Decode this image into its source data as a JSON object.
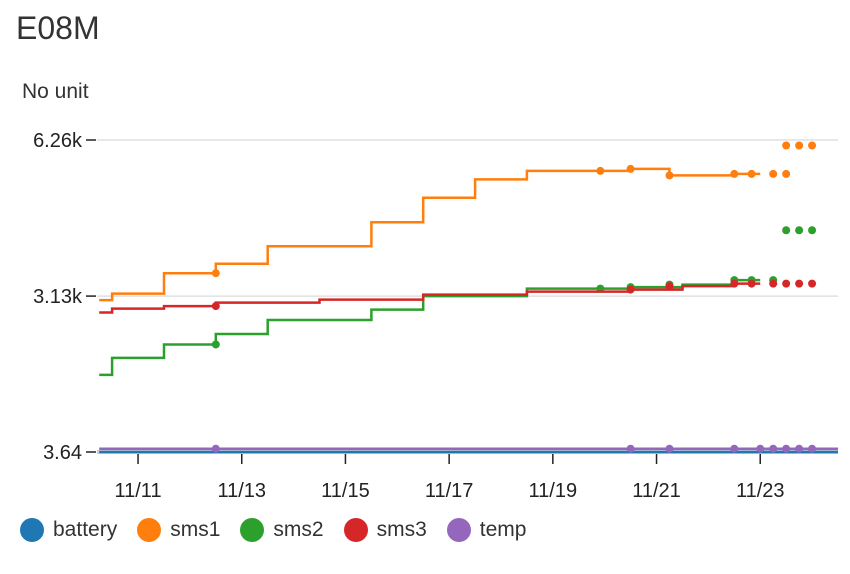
{
  "title": "E08M",
  "unit_label": "No unit",
  "chart_data": {
    "type": "line",
    "x_ticks": [
      "11/11",
      "11/13",
      "11/15",
      "11/17",
      "11/19",
      "11/21",
      "11/23"
    ],
    "y_ticks": [
      {
        "label": "6.26k",
        "value": 6260
      },
      {
        "label": "3.13k",
        "value": 3130
      },
      {
        "label": "3.64",
        "value": 3.64
      }
    ],
    "ylim": [
      3.64,
      6260
    ],
    "xlim": [
      "11/10 05:00",
      "11/24 12:00"
    ],
    "grid": true,
    "legend": "bottom",
    "series": [
      {
        "name": "battery",
        "color": "#1f77b4",
        "points": [
          [
            "11/10 06:00",
            3.64
          ],
          [
            "11/24 12:00",
            3.64
          ]
        ],
        "dots": []
      },
      {
        "name": "sms1",
        "color": "#ff7f0e",
        "points": [
          [
            "11/10 06:00",
            3050
          ],
          [
            "11/10 12:00",
            3050
          ],
          [
            "11/10 12:00",
            3180
          ],
          [
            "11/11 12:00",
            3180
          ],
          [
            "11/11 12:00",
            3590
          ],
          [
            "11/12 12:00",
            3590
          ],
          [
            "11/12 12:00",
            3780
          ],
          [
            "11/13 12:00",
            3780
          ],
          [
            "11/13 12:00",
            4130
          ],
          [
            "11/15 12:00",
            4130
          ],
          [
            "11/15 12:00",
            4610
          ],
          [
            "11/16 12:00",
            4610
          ],
          [
            "11/16 12:00",
            5100
          ],
          [
            "11/17 12:00",
            5100
          ],
          [
            "11/17 12:00",
            5470
          ],
          [
            "11/18 12:00",
            5470
          ],
          [
            "11/18 12:00",
            5640
          ],
          [
            "11/20 12:00",
            5640
          ],
          [
            "11/20 12:00",
            5680
          ],
          [
            "11/21 06:00",
            5680
          ],
          [
            "11/21 06:00",
            5550
          ],
          [
            "11/22 12:00",
            5550
          ],
          [
            "11/22 12:00",
            5580
          ],
          [
            "11/23 00:00",
            5580
          ]
        ],
        "dots": [
          [
            "11/12 12:00",
            3590
          ],
          [
            "11/19 22:00",
            5640
          ],
          [
            "11/20 12:00",
            5680
          ],
          [
            "11/21 06:00",
            5550
          ],
          [
            "11/22 12:00",
            5580
          ],
          [
            "11/22 20:00",
            5580
          ],
          [
            "11/23 06:00",
            5580
          ],
          [
            "11/23 12:00",
            5580
          ],
          [
            "11/23 12:00",
            6150
          ],
          [
            "11/23 18:00",
            6150
          ],
          [
            "11/24 00:00",
            6150
          ]
        ]
      },
      {
        "name": "sms2",
        "color": "#2ca02c",
        "points": [
          [
            "11/10 06:00",
            1550
          ],
          [
            "11/10 12:00",
            1550
          ],
          [
            "11/10 12:00",
            1890
          ],
          [
            "11/11 12:00",
            1890
          ],
          [
            "11/11 12:00",
            2160
          ],
          [
            "11/12 12:00",
            2160
          ],
          [
            "11/12 12:00",
            2370
          ],
          [
            "11/13 12:00",
            2370
          ],
          [
            "11/13 12:00",
            2650
          ],
          [
            "11/15 12:00",
            2650
          ],
          [
            "11/15 12:00",
            2860
          ],
          [
            "11/16 12:00",
            2860
          ],
          [
            "11/16 12:00",
            3130
          ],
          [
            "11/18 12:00",
            3130
          ],
          [
            "11/18 12:00",
            3280
          ],
          [
            "11/20 12:00",
            3280
          ],
          [
            "11/20 12:00",
            3310
          ],
          [
            "11/21 12:00",
            3310
          ],
          [
            "11/21 12:00",
            3360
          ],
          [
            "11/22 12:00",
            3360
          ],
          [
            "11/22 12:00",
            3450
          ],
          [
            "11/23 00:00",
            3450
          ]
        ],
        "dots": [
          [
            "11/12 12:00",
            2160
          ],
          [
            "11/19 22:00",
            3280
          ],
          [
            "11/20 12:00",
            3310
          ],
          [
            "11/21 06:00",
            3360
          ],
          [
            "11/22 12:00",
            3450
          ],
          [
            "11/22 20:00",
            3450
          ],
          [
            "11/23 06:00",
            3450
          ],
          [
            "11/23 12:00",
            4450
          ],
          [
            "11/23 18:00",
            4450
          ],
          [
            "11/24 00:00",
            4450
          ]
        ]
      },
      {
        "name": "sms3",
        "color": "#d62728",
        "points": [
          [
            "11/10 06:00",
            2800
          ],
          [
            "11/10 12:00",
            2800
          ],
          [
            "11/10 12:00",
            2880
          ],
          [
            "11/11 12:00",
            2880
          ],
          [
            "11/11 12:00",
            2930
          ],
          [
            "11/12 12:00",
            2930
          ],
          [
            "11/12 12:00",
            3000
          ],
          [
            "11/14 12:00",
            3000
          ],
          [
            "11/14 12:00",
            3060
          ],
          [
            "11/16 12:00",
            3060
          ],
          [
            "11/16 12:00",
            3160
          ],
          [
            "11/18 12:00",
            3160
          ],
          [
            "11/18 12:00",
            3220
          ],
          [
            "11/20 12:00",
            3220
          ],
          [
            "11/20 12:00",
            3260
          ],
          [
            "11/21 12:00",
            3260
          ],
          [
            "11/21 12:00",
            3330
          ],
          [
            "11/22 12:00",
            3330
          ],
          [
            "11/22 12:00",
            3380
          ],
          [
            "11/23 00:00",
            3380
          ]
        ],
        "dots": [
          [
            "11/12 12:00",
            2930
          ],
          [
            "11/20 12:00",
            3260
          ],
          [
            "11/21 06:00",
            3330
          ],
          [
            "11/22 12:00",
            3380
          ],
          [
            "11/22 20:00",
            3380
          ],
          [
            "11/23 06:00",
            3380
          ],
          [
            "11/23 12:00",
            3380
          ],
          [
            "11/23 18:00",
            3380
          ],
          [
            "11/24 00:00",
            3380
          ]
        ]
      },
      {
        "name": "temp",
        "color": "#9467bd",
        "points": [
          [
            "11/10 06:00",
            70
          ],
          [
            "11/24 12:00",
            70
          ]
        ],
        "dots": [
          [
            "11/12 12:00",
            70
          ],
          [
            "11/20 12:00",
            70
          ],
          [
            "11/21 06:00",
            70
          ],
          [
            "11/22 12:00",
            70
          ],
          [
            "11/23 00:00",
            70
          ],
          [
            "11/23 06:00",
            70
          ],
          [
            "11/23 12:00",
            70
          ],
          [
            "11/23 18:00",
            70
          ],
          [
            "11/24 00:00",
            70
          ]
        ]
      }
    ]
  }
}
